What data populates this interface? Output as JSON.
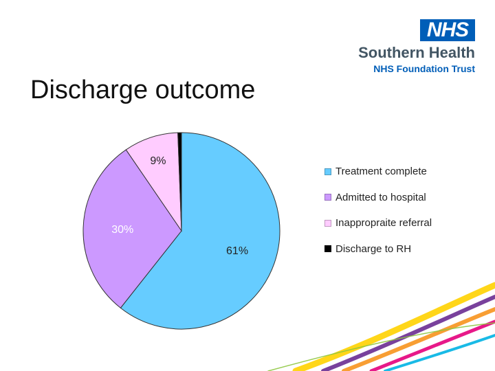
{
  "slide": {
    "title": "Discharge outcome"
  },
  "logo": {
    "badge": "NHS",
    "name": "Southern Health",
    "subtitle": "NHS Foundation Trust",
    "badge_color": "#005EB8"
  },
  "chart_data": {
    "type": "pie",
    "title": "",
    "categories": [
      "Treatment complete",
      "Admitted to hospital",
      "Inappropraite referral",
      "Discharge to RH"
    ],
    "values": [
      61,
      30,
      9,
      0.6
    ],
    "data_labels": [
      "61%",
      "30%",
      "9%",
      ""
    ],
    "colors": [
      "#66CCFF",
      "#CC99FF",
      "#FFCCFF",
      "#000000"
    ],
    "legend_position": "right"
  },
  "decor": {
    "stripe_colors": [
      "#FFD200",
      "#6A2C91",
      "#F7941D",
      "#E4007C",
      "#00B2E3",
      "#8DC63F"
    ]
  }
}
